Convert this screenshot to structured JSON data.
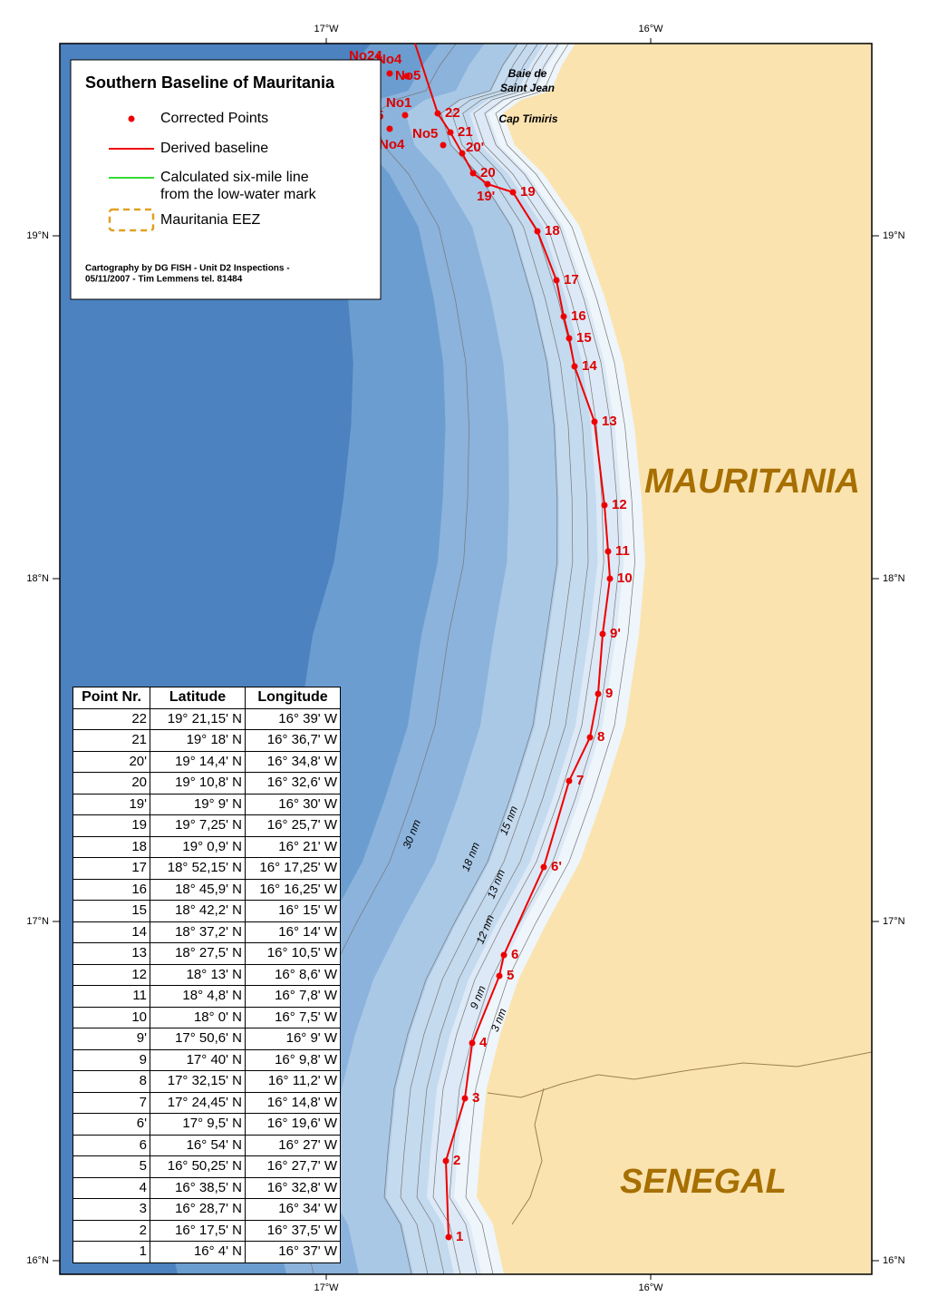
{
  "axes": {
    "top": [
      "17°W",
      "16°W"
    ],
    "bottom": [
      "17°W",
      "16°W"
    ],
    "left": [
      "19°N",
      "18°N",
      "17°N",
      "16°N"
    ],
    "right": [
      "19°N",
      "18°N",
      "17°N",
      "16°N"
    ]
  },
  "legend": {
    "title": "Southern Baseline of Mauritania",
    "items": [
      [
        "Corrected Points"
      ],
      [
        "Derived baseline"
      ],
      [
        "Calculated six-mile line",
        "from the low-water mark"
      ],
      [
        "Mauritania EEZ"
      ]
    ],
    "credit": [
      "Cartography by DG FISH - Unit D2 Inspections -",
      "05/11/2007 - Tim Lemmens tel. 81484"
    ]
  },
  "places": {
    "bay": [
      "Baie de",
      "Saint Jean"
    ],
    "cape": "Cap Timiris",
    "countries": [
      "MAURITANIA",
      "SENEGAL"
    ]
  },
  "contour_labels": [
    "30 nm",
    "18 nm",
    "15 nm",
    "13 nm",
    "12 nm",
    "9 nm",
    "3 nm"
  ],
  "baseline_points": [
    "1",
    "2",
    "3",
    "4",
    "5",
    "6",
    "6'",
    "7",
    "8",
    "9",
    "9'",
    "10",
    "11",
    "12",
    "13",
    "14",
    "15",
    "16",
    "17",
    "18",
    "19",
    "19'",
    "20",
    "20'",
    "21",
    "22"
  ],
  "other_points": [
    "No24",
    "No4",
    "No5",
    "No1",
    "5",
    "No5",
    "No4"
  ],
  "table": {
    "header": [
      "Point Nr.",
      "Latitude",
      "Longitude"
    ],
    "rows": [
      [
        "22",
        "19° 21,15' N",
        "16° 39' W"
      ],
      [
        "21",
        "19° 18' N",
        "16° 36,7' W"
      ],
      [
        "20'",
        "19° 14,4' N",
        "16° 34,8' W"
      ],
      [
        "20",
        "19° 10,8' N",
        "16° 32,6' W"
      ],
      [
        "19'",
        "19° 9' N",
        "16° 30' W"
      ],
      [
        "19",
        "19° 7,25' N",
        "16° 25,7' W"
      ],
      [
        "18",
        "19° 0,9' N",
        "16° 21' W"
      ],
      [
        "17",
        "18° 52,15' N",
        "16° 17,25' W"
      ],
      [
        "16",
        "18° 45,9' N",
        "16° 16,25' W"
      ],
      [
        "15",
        "18° 42,2' N",
        "16° 15' W"
      ],
      [
        "14",
        "18° 37,2' N",
        "16° 14' W"
      ],
      [
        "13",
        "18° 27,5' N",
        "16° 10,5' W"
      ],
      [
        "12",
        "18° 13' N",
        "16° 8,6' W"
      ],
      [
        "11",
        "18° 4,8' N",
        "16° 7,8' W"
      ],
      [
        "10",
        "18° 0' N",
        "16° 7,5' W"
      ],
      [
        "9'",
        "17° 50,6' N",
        "16° 9' W"
      ],
      [
        "9",
        "17° 40' N",
        "16° 9,8' W"
      ],
      [
        "8",
        "17° 32,15' N",
        "16° 11,2' W"
      ],
      [
        "7",
        "17° 24,45' N",
        "16° 14,8' W"
      ],
      [
        "6'",
        "17° 9,5' N",
        "16° 19,6' W"
      ],
      [
        "6",
        "16° 54' N",
        "16° 27' W"
      ],
      [
        "5",
        "16° 50,25' N",
        "16° 27,7' W"
      ],
      [
        "4",
        "16° 38,5' N",
        "16° 32,8' W"
      ],
      [
        "3",
        "16° 28,7' N",
        "16° 34' W"
      ],
      [
        "2",
        "16° 17,5' N",
        "16° 37,5' W"
      ],
      [
        "1",
        "16° 4' N",
        "16° 37' W"
      ]
    ]
  }
}
